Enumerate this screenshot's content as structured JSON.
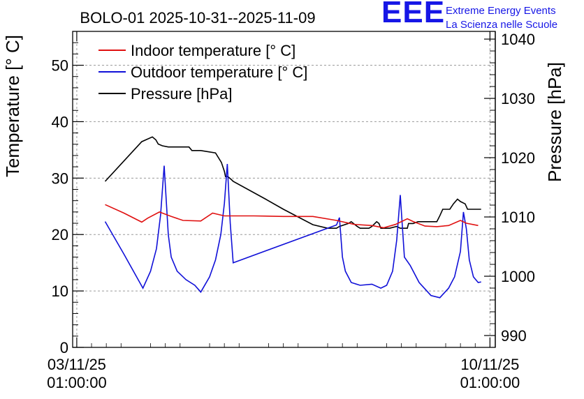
{
  "header": {
    "title": "BOLO-01 2025-10-31--2025-11-09",
    "logo_mark": "EEE",
    "logo_line1": "Extreme Energy Events",
    "logo_line2": "La Scienza nelle Scuole"
  },
  "colors": {
    "indoor": "#e01010",
    "outdoor": "#1010d8",
    "pressure": "#000000",
    "grid": "#9a9a9a",
    "logo": "#1616e6"
  },
  "chart_data": {
    "type": "line",
    "title": "BOLO-01 2025-10-31--2025-11-09",
    "x_unit": "days since 03/11/25 01:00:00",
    "xlim": [
      -0.07,
      7.09
    ],
    "x_ticks": [
      {
        "pos": 0,
        "line1": "03/11/25",
        "line2": "01:00:00"
      },
      {
        "pos": 7,
        "line1": "10/11/25",
        "line2": "01:00:00"
      }
    ],
    "ylabel_left": "Temperature [° C]",
    "ylim_left": [
      0,
      56
    ],
    "y_ticks_left": [
      0,
      10,
      20,
      30,
      40,
      50
    ],
    "ylabel_right": "Pressure [hPa]",
    "ylim_right": [
      988.0,
      1041.3
    ],
    "y_ticks_right": [
      990,
      1000,
      1010,
      1020,
      1030,
      1040
    ],
    "grid": true,
    "legend_position": "top-left",
    "series": [
      {
        "name": "Indoor temperature [° C]",
        "axis": "left",
        "color": "#e01010",
        "x": [
          0.48,
          0.8,
          1.1,
          1.2,
          1.4,
          1.6,
          1.8,
          2.1,
          2.3,
          2.5,
          3.0,
          3.5,
          4.0,
          4.4,
          4.7,
          5.0,
          5.2,
          5.4,
          5.6,
          5.7,
          5.9,
          6.1,
          6.3,
          6.5,
          6.6,
          6.8
        ],
        "y": [
          25.3,
          23.8,
          22.2,
          22.9,
          24.0,
          23.2,
          22.5,
          22.4,
          23.8,
          23.3,
          23.3,
          23.2,
          23.2,
          22.5,
          21.8,
          21.6,
          21.2,
          21.8,
          22.8,
          22.3,
          21.5,
          21.4,
          21.6,
          22.5,
          22.0,
          21.6
        ]
      },
      {
        "name": "Outdoor temperature [° C]",
        "axis": "left",
        "color": "#1010d8",
        "x": [
          0.48,
          0.8,
          1.12,
          1.25,
          1.35,
          1.42,
          1.48,
          1.55,
          1.6,
          1.7,
          1.85,
          2.0,
          2.1,
          2.25,
          2.35,
          2.44,
          2.5,
          2.55,
          2.6,
          2.65,
          4.4,
          4.45,
          4.5,
          4.55,
          4.65,
          4.8,
          5.0,
          5.15,
          5.25,
          5.35,
          5.42,
          5.48,
          5.55,
          5.65,
          5.8,
          6.0,
          6.15,
          6.3,
          6.4,
          6.5,
          6.55,
          6.6,
          6.65,
          6.72,
          6.8,
          6.85
        ],
        "y": [
          22.3,
          16.5,
          10.5,
          13.5,
          17.5,
          23.5,
          32.2,
          20.0,
          16.0,
          13.5,
          12.0,
          11.0,
          9.8,
          12.5,
          15.5,
          20.0,
          25.5,
          32.5,
          22.0,
          15.0,
          21.7,
          23.0,
          16.0,
          13.5,
          11.5,
          11.0,
          11.2,
          10.5,
          11.0,
          13.5,
          19.0,
          27.0,
          16.0,
          14.5,
          11.5,
          9.2,
          8.8,
          10.5,
          12.5,
          17.0,
          24.0,
          21.0,
          15.5,
          12.5,
          11.5,
          11.6
        ]
      },
      {
        "name": "Pressure [hPa]",
        "axis": "right",
        "color": "#000000",
        "x": [
          0.48,
          1.1,
          1.28,
          1.34,
          1.38,
          1.45,
          1.55,
          1.9,
          1.95,
          2.1,
          2.35,
          2.45,
          2.5,
          2.52,
          2.56,
          2.62,
          2.65,
          3.2,
          3.5,
          4.0,
          4.25,
          4.4,
          4.45,
          4.6,
          4.65,
          4.75,
          4.8,
          4.95,
          5.0,
          5.08,
          5.12,
          5.15,
          5.3,
          5.42,
          5.48,
          5.6,
          5.62,
          5.7,
          5.78,
          6.1,
          6.15,
          6.2,
          6.32,
          6.38,
          6.45,
          6.5,
          6.58,
          6.62,
          6.8,
          6.85
        ],
        "y": [
          1016.0,
          1022.7,
          1023.5,
          1023.0,
          1022.3,
          1022.0,
          1021.8,
          1021.8,
          1021.2,
          1021.2,
          1020.8,
          1019.2,
          1017.7,
          1016.8,
          1016.8,
          1016.3,
          1016.0,
          1013.0,
          1011.3,
          1008.7,
          1008.1,
          1008.1,
          1008.4,
          1008.9,
          1009.2,
          1008.4,
          1008.1,
          1008.1,
          1008.4,
          1009.2,
          1008.9,
          1008.1,
          1008.1,
          1008.4,
          1008.1,
          1008.1,
          1008.9,
          1008.9,
          1009.2,
          1009.2,
          1010.2,
          1011.3,
          1011.3,
          1012.2,
          1013.0,
          1012.6,
          1012.2,
          1011.3,
          1011.3,
          1011.3
        ]
      }
    ]
  }
}
